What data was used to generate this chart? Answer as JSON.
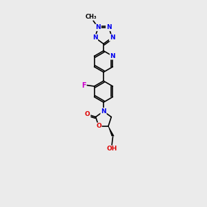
{
  "bg_color": "#ebebeb",
  "bond_color": "#000000",
  "bond_width": 1.2,
  "atom_colors": {
    "N": "#0000ee",
    "O": "#dd0000",
    "F": "#cc00cc",
    "C": "#000000"
  },
  "scale": 1.0
}
